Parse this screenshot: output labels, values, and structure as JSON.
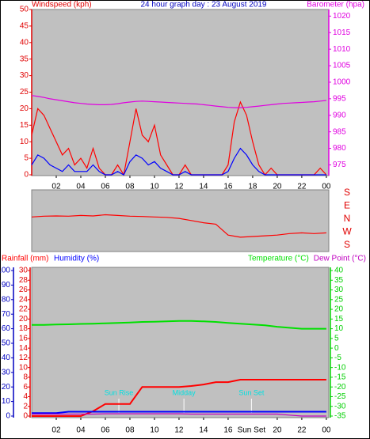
{
  "chart_data": [
    {
      "type": "line",
      "title": "24 hour graph day : 23 August 2019",
      "y_label": "Windspeed (kph)",
      "y2_label": "Barometer (hpa)",
      "xlim": [
        0,
        24.2
      ],
      "xticks": [
        {
          "value": 2,
          "label": "02"
        },
        {
          "value": 4,
          "label": "04"
        },
        {
          "value": 6,
          "label": "06"
        },
        {
          "value": 8,
          "label": "08"
        },
        10,
        12,
        14,
        16,
        18,
        20,
        22,
        {
          "value": 24,
          "label": "00"
        }
      ],
      "ylim": [
        0,
        50
      ],
      "yticks": [
        0,
        5,
        10,
        15,
        20,
        25,
        30,
        35,
        40,
        45,
        50
      ],
      "y2lim": [
        972,
        1022
      ],
      "y2ticks": [
        975,
        980,
        985,
        990,
        995,
        1000,
        1005,
        1010,
        1015,
        1020
      ],
      "grid": false,
      "x": [
        0,
        0.5,
        1,
        1.5,
        2,
        2.5,
        3,
        3.5,
        4,
        4.5,
        5,
        5.5,
        6,
        6.5,
        7,
        7.5,
        8,
        8.5,
        9,
        9.5,
        10,
        10.5,
        11,
        11.5,
        12,
        12.5,
        13,
        13.5,
        14,
        14.5,
        15,
        15.5,
        16,
        16.5,
        17,
        17.5,
        18,
        18.5,
        19,
        19.5,
        20,
        20.5,
        21,
        21.5,
        22,
        22.5,
        23,
        23.5,
        24
      ],
      "series": [
        {
          "color": "#ff0000",
          "values": [
            12,
            20,
            18,
            14,
            10,
            6,
            8,
            3,
            5,
            2,
            8,
            2,
            0,
            0,
            3,
            0,
            10,
            20,
            12,
            10,
            15,
            6,
            3,
            0,
            0,
            3,
            0,
            0,
            0,
            0,
            0,
            0,
            3,
            16,
            22,
            18,
            10,
            3,
            0,
            2,
            0,
            0,
            0,
            0,
            0,
            0,
            0,
            2,
            0
          ]
        },
        {
          "color": "#0000ff",
          "values": [
            3,
            6,
            5,
            3,
            2,
            1,
            3,
            1,
            1,
            1,
            3,
            1,
            0,
            0,
            1,
            0,
            4,
            6,
            5,
            3,
            4,
            2,
            1,
            0,
            0,
            1,
            0,
            0,
            0,
            0,
            0,
            0,
            1,
            5,
            8,
            6,
            3,
            1,
            0,
            0,
            0,
            0,
            0,
            0,
            0,
            0,
            0,
            0,
            0
          ]
        },
        {
          "color": "#e000e0",
          "axis": "y2",
          "values": [
            996,
            995.7,
            995.4,
            995,
            994.7,
            994.4,
            994.1,
            993.8,
            993.6,
            993.4,
            993.3,
            993.2,
            993.2,
            993.3,
            993.5,
            993.8,
            994,
            994.2,
            994.3,
            994.2,
            994.1,
            994,
            993.9,
            993.8,
            993.7,
            993.6,
            993.5,
            993.4,
            993.2,
            993,
            992.8,
            992.6,
            992.4,
            992.3,
            992.3,
            992.4,
            992.6,
            992.8,
            993,
            993.2,
            993.4,
            993.6,
            993.7,
            993.8,
            993.9,
            994,
            994.1,
            994.3,
            994.5
          ]
        }
      ]
    },
    {
      "type": "line",
      "xlim": [
        0,
        24.2
      ],
      "ylim": [
        -180,
        180
      ],
      "yticks": [
        {
          "value": 180,
          "label": "S"
        },
        {
          "value": 90,
          "label": "E"
        },
        {
          "value": 0,
          "label": "N"
        },
        {
          "value": -90,
          "label": "W"
        },
        {
          "value": -180,
          "label": "S"
        }
      ],
      "x": [
        0,
        1,
        2,
        3,
        4,
        5,
        6,
        7,
        8,
        9,
        10,
        11,
        12,
        13,
        14,
        15,
        16,
        17,
        18,
        19,
        20,
        21,
        22,
        23,
        24
      ],
      "series": [
        {
          "color": "#ff0000",
          "values": [
            15,
            20,
            22,
            20,
            25,
            22,
            30,
            25,
            20,
            18,
            15,
            12,
            5,
            -10,
            -25,
            -35,
            -110,
            -125,
            -120,
            -115,
            -110,
            -100,
            -95,
            -100,
            -95
          ]
        }
      ]
    },
    {
      "type": "line",
      "xlim": [
        0,
        24.2
      ],
      "xticks": [
        {
          "value": 2,
          "label": "02"
        },
        {
          "value": 4,
          "label": "04"
        },
        {
          "value": 6,
          "label": "06"
        },
        {
          "value": 8,
          "label": "08"
        },
        10,
        12,
        14,
        16,
        20,
        22,
        {
          "value": 24,
          "label": "00"
        }
      ],
      "ylim": [
        0,
        30
      ],
      "yticks": [
        0,
        2,
        4,
        6,
        8,
        10,
        12,
        14,
        16,
        18,
        20,
        22,
        24,
        26,
        28,
        30
      ],
      "y3lim": [
        0,
        100
      ],
      "y3ticks": [
        0,
        10,
        20,
        30,
        40,
        50,
        60,
        70,
        80,
        90,
        100
      ],
      "y2lim": [
        -35,
        40
      ],
      "y2ticks": [
        40,
        35,
        30,
        25,
        20,
        15,
        10,
        5,
        0,
        -5,
        -10,
        -15,
        -20,
        -25,
        -30,
        -35
      ],
      "x": [
        0,
        1,
        2,
        3,
        4,
        5,
        6,
        7,
        8,
        9,
        10,
        11,
        12,
        13,
        14,
        15,
        16,
        17,
        18,
        19,
        20,
        21,
        22,
        23,
        24
      ],
      "series": [
        {
          "name": "Rainfall (mm)",
          "color": "#ff0000",
          "values": [
            0,
            0,
            0,
            0,
            0,
            1,
            2.5,
            2.5,
            2.5,
            6,
            6,
            6,
            6,
            6.2,
            6.5,
            7,
            7,
            7.5,
            7.5,
            7.5,
            7.5,
            7.5,
            7.5,
            7.5,
            7.5
          ]
        },
        {
          "name": "Humidity (%)",
          "color": "#0000ff",
          "axis": "y3",
          "values": [
            2,
            2,
            2,
            3,
            3,
            3,
            3,
            3,
            3,
            3,
            3,
            3,
            3,
            3,
            3,
            3,
            3,
            3,
            3,
            3,
            3,
            3,
            3,
            3,
            3
          ]
        },
        {
          "name": "Temperature (°C)",
          "color": "#00e000",
          "axis": "y2",
          "values": [
            12,
            12,
            12.2,
            12.3,
            12.5,
            12.6,
            12.8,
            13,
            13.2,
            13.5,
            13.6,
            13.8,
            14,
            14,
            13.8,
            13.5,
            13,
            12.6,
            12.2,
            11.8,
            11,
            10.5,
            10,
            10,
            10
          ]
        },
        {
          "name": "Dew Point (°C)",
          "color": "#c000c0",
          "axis": "y2",
          "values": [
            -34,
            -34,
            -34,
            -34,
            -34,
            -34,
            -33.8,
            -33.8,
            -33.8,
            -33.8,
            -33.8,
            -33.8,
            -33.8,
            -34,
            -34,
            -34,
            -34,
            -34,
            -34,
            -34,
            -34,
            -34.5,
            -35,
            -35,
            -35
          ]
        }
      ],
      "annotations": [
        {
          "x": 7.1,
          "label": "Sun Rise"
        },
        {
          "x": 12.4,
          "label": "Midday"
        },
        {
          "x": 17.9,
          "label": "Sun Set"
        }
      ]
    }
  ]
}
